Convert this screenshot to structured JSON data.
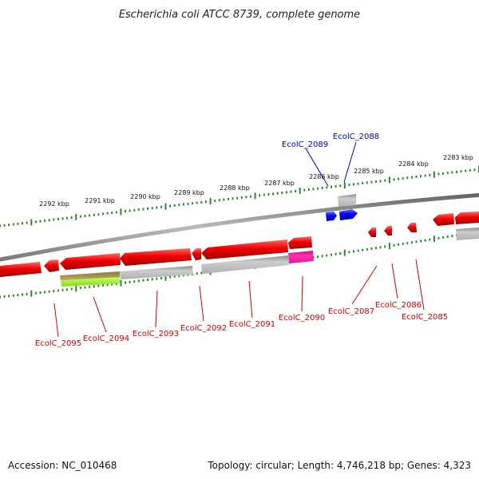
{
  "title": "Escherichia coli ATCC 8739, complete genome",
  "tick_labels": [
    "2292 kbp",
    "2291 kbp",
    "2290 kbp",
    "2289 kbp",
    "2288 kbp",
    "2287 kbp",
    "2286 kbp",
    "2285 kbp",
    "2284 kbp",
    "2283 kbp"
  ],
  "genes": [
    {
      "name": "EcolC_2089",
      "color": "#0000cc"
    },
    {
      "name": "EcolC_2088",
      "color": "#0000cc"
    },
    {
      "name": "EcolC_2095",
      "color": "#cc0000"
    },
    {
      "name": "EcolC_2094",
      "color": "#cc0000"
    },
    {
      "name": "EcolC_2093",
      "color": "#cc0000"
    },
    {
      "name": "EcolC_2092",
      "color": "#cc0000"
    },
    {
      "name": "EcolC_2091",
      "color": "#cc0000"
    },
    {
      "name": "EcolC_2090",
      "color": "#cc0000"
    },
    {
      "name": "EcolC_2087",
      "color": "#cc0000"
    },
    {
      "name": "EcolC_2086",
      "color": "#cc0000"
    },
    {
      "name": "EcolC_2085",
      "color": "#cc0000"
    }
  ],
  "footer": {
    "accession": "Accession: NC_010468",
    "topology": "Topology: circular; Length: 4,746,218 bp; Genes: 4,323"
  },
  "colors": {
    "forward_gene": "#0000ee",
    "reverse_gene": "#ee0000",
    "backbone": "#888888",
    "tick": "#2a8a2a",
    "annotation_gray": "#bbbbbb",
    "annotation_magenta": "#e0189a",
    "annotation_olive": "#b8a45a",
    "annotation_lime": "#a8ee3a"
  }
}
